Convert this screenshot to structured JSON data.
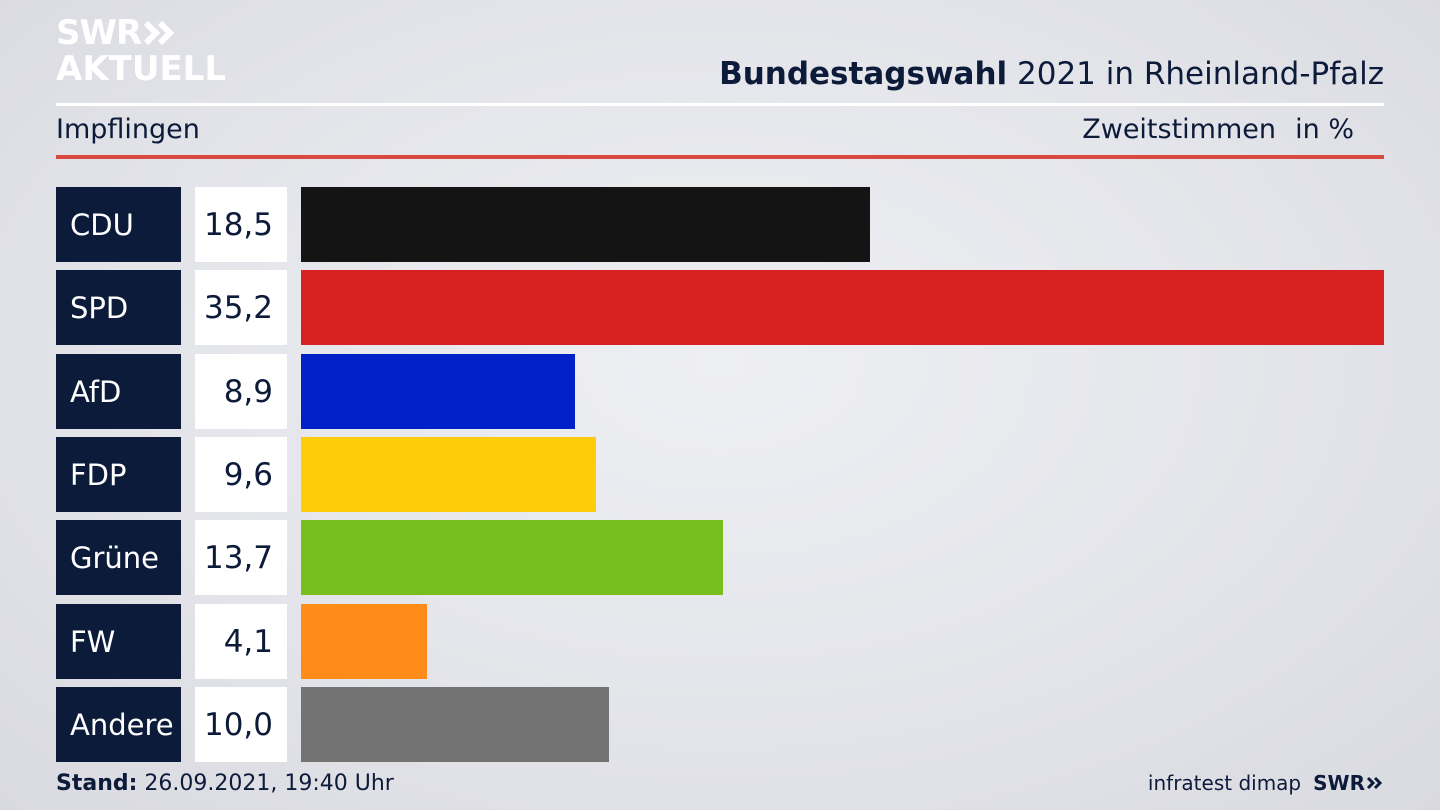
{
  "header": {
    "logo_line1": "SWR",
    "logo_line2": "AKTUELL",
    "title_bold": "Bundestagswahl",
    "title_rest": " 2021 in Rheinland-Pfalz",
    "subtitle": "Impflingen",
    "vote_type": "Zweitstimmen",
    "unit": "in %"
  },
  "footer": {
    "stand_label": "Stand:",
    "stand_value": " 26.09.2021, 19:40 Uhr",
    "source": "infratest dimap",
    "logo": "SWR"
  },
  "colors": {
    "navy": "#0d1b3a",
    "accent_rule": "#d9493f"
  },
  "chart_data": {
    "type": "bar",
    "orientation": "horizontal",
    "categories": [
      "CDU",
      "SPD",
      "AfD",
      "FDP",
      "Grüne",
      "FW",
      "Andere"
    ],
    "values": [
      18.5,
      35.2,
      8.9,
      9.6,
      13.7,
      4.1,
      10.0
    ],
    "value_labels": [
      "18,5",
      "35,2",
      "8,9",
      "9,6",
      "13,7",
      "4,1",
      "10,0"
    ],
    "colors": [
      "#141414",
      "#d72121",
      "#0020c8",
      "#fdcd0c",
      "#78be1e",
      "#ff8c19",
      "#737373"
    ],
    "xlim": [
      0,
      35.2
    ],
    "grid": false,
    "legend": "none"
  }
}
